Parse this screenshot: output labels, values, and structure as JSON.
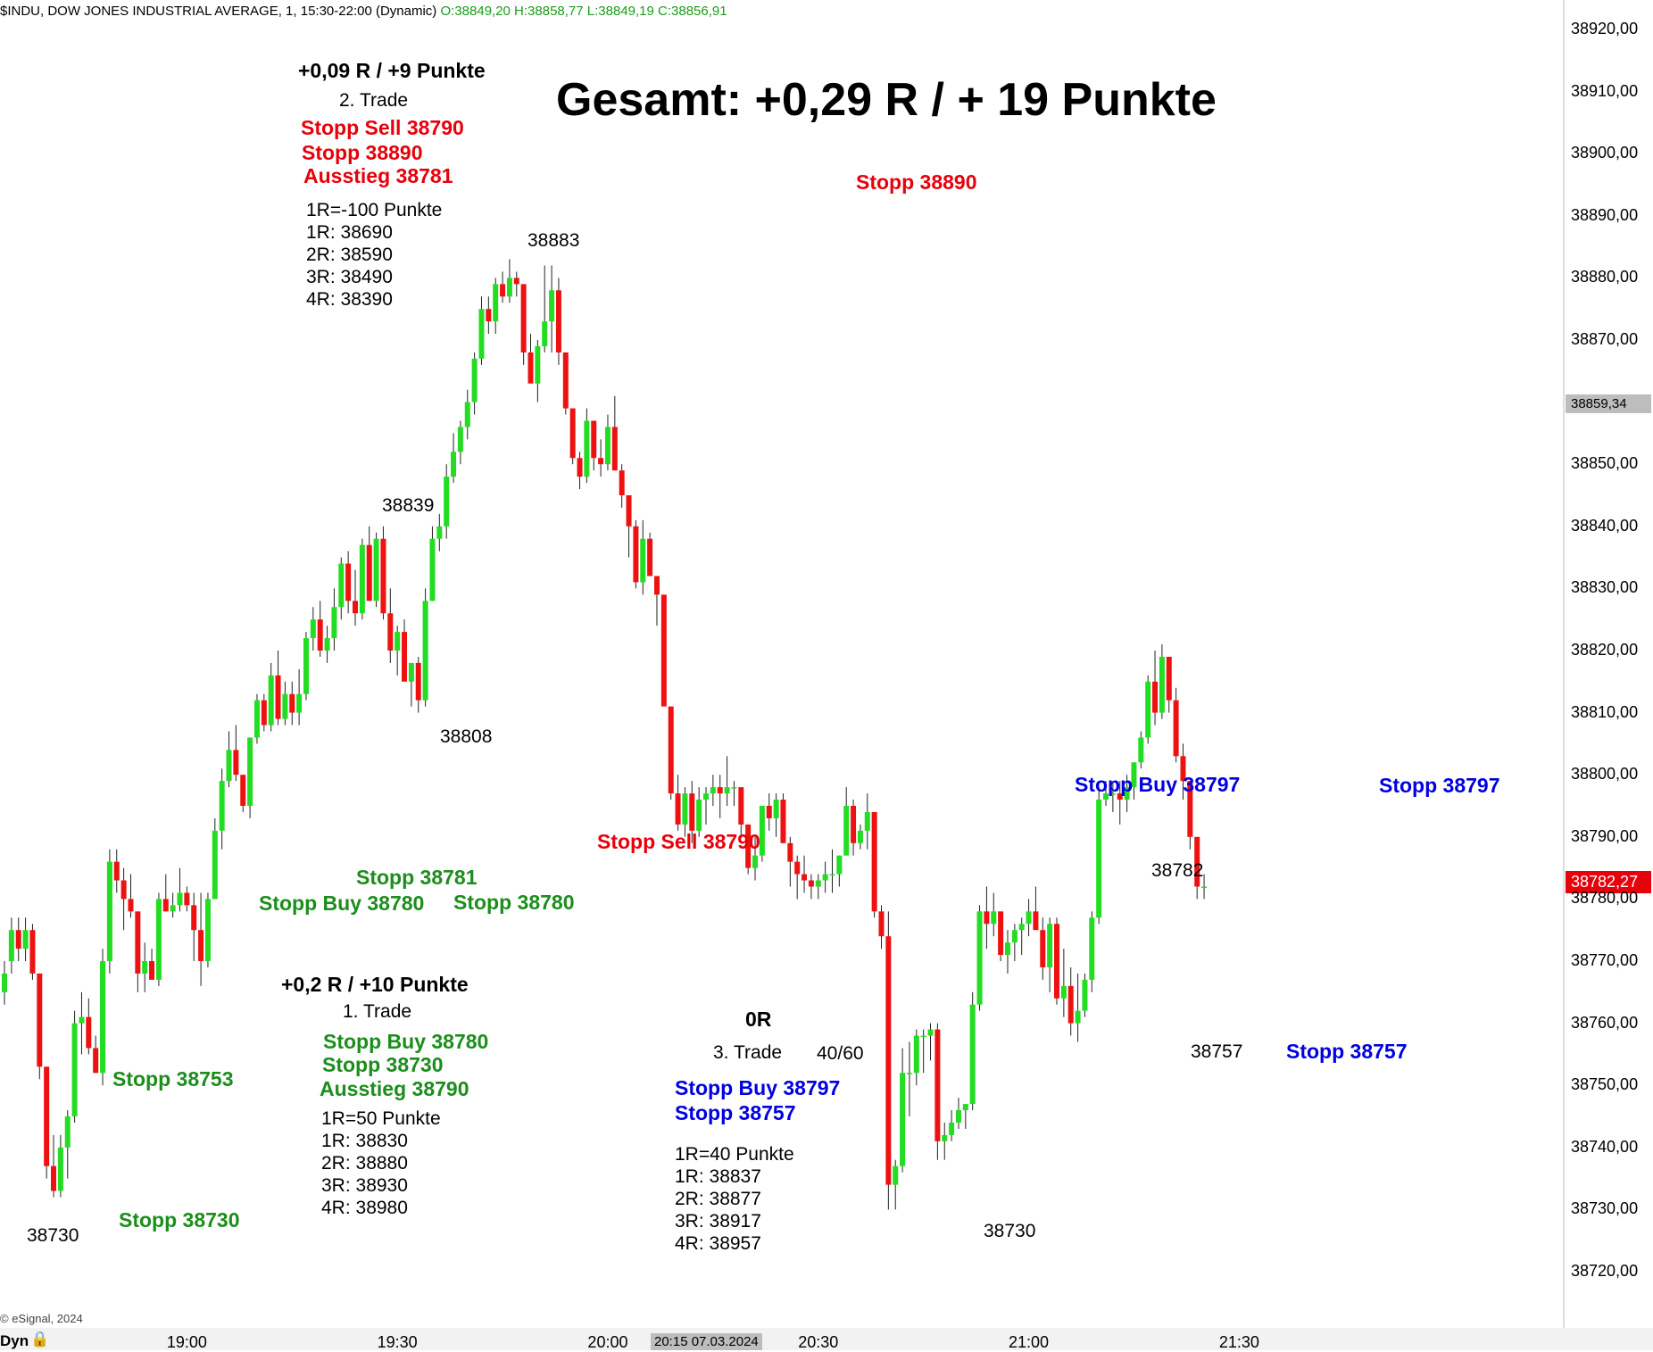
{
  "header": {
    "title": "$INDU, DOW JONES INDUSTRIAL AVERAGE, 1, 15:30-22:00 (Dynamic)",
    "ohlc": "O:38849,20 H:38858,77 L:38849,19 C:38856,91"
  },
  "headline": "Gesamt: +0,29 R /   + 19 Punkte",
  "annotations": {
    "trade2_result": "+0,09 R / +9 Punkte",
    "trade2_label": "2. Trade",
    "trade2_stopp_sell": "Stopp Sell 38790",
    "trade2_stopp": "Stopp 38890",
    "trade2_ausstieg": "Ausstieg 38781",
    "trade2_r_lines": [
      "1R=-100 Punkte",
      "1R: 38690",
      "2R: 38590",
      "3R: 38490",
      "4R: 38390"
    ],
    "stopp_38890_right": "Stopp 38890",
    "high_38883": "38883",
    "high_38839": "38839",
    "low_38808": "38808",
    "stopp_sell_mid": "Stopp Sell 38790",
    "stopp_38781": "Stopp 38781",
    "stopp_buy_38780": "Stopp Buy 38780",
    "stopp_38780": "Stopp 38780",
    "trade1_result": "+0,2 R / +10 Punkte",
    "trade1_label": "1. Trade",
    "trade1_stopp_buy": "Stopp Buy 38780",
    "trade1_stopp": "Stopp 38730",
    "trade1_ausstieg": "Ausstieg 38790",
    "trade1_r_lines": [
      "1R=50 Punkte",
      "1R: 38830",
      "2R: 38880",
      "3R: 38930",
      "4R: 38980"
    ],
    "stopp_38753": "Stopp 38753",
    "stopp_38730_left": "Stopp 38730",
    "low_38730_left": "38730",
    "trade3_result": "0R",
    "trade3_label": "3. Trade",
    "trade3_ratio": "40/60",
    "trade3_stopp_buy": "Stopp Buy 38797",
    "trade3_stopp": "Stopp 38757",
    "trade3_r_lines": [
      "1R=40 Punkte",
      "1R: 38837",
      "2R: 38877",
      "3R: 38917",
      "4R: 38957"
    ],
    "low_38730_right": "38730",
    "stopp_buy_38797": "Stopp Buy 38797",
    "stopp_38797": "Stopp 38797",
    "high_38782": "38782",
    "low_38757": "38757",
    "stopp_38757_right": "Stopp 38757"
  },
  "price_tags": {
    "grey": "38859,34",
    "last": "38782,27"
  },
  "time_tag": "20:15 07.03.2024",
  "copyright": "© eSignal, 2024",
  "dyn_label": "Dyn",
  "colors": {
    "up": "#22dd22",
    "down": "#ee1111",
    "red_text": "#e8000b",
    "green_text": "#1b8e1b",
    "blue_text": "#0000e0",
    "last_tag": "#e8000b",
    "grey_tag": "#bdbdbd"
  },
  "chart_data": {
    "type": "candlestick",
    "y_ticks": [
      "38920,00",
      "38910,00",
      "38900,00",
      "38890,00",
      "38880,00",
      "38870,00",
      "38850,00",
      "38840,00",
      "38830,00",
      "38820,00",
      "38810,00",
      "38800,00",
      "38790,00",
      "38780,00",
      "38770,00",
      "38760,00",
      "38750,00",
      "38740,00",
      "38730,00",
      "38720,00"
    ],
    "ylim": [
      38715,
      38925
    ],
    "x_ticks": [
      {
        "label": "19:00",
        "bar": 26
      },
      {
        "label": "19:30",
        "bar": 56
      },
      {
        "label": "20:00",
        "bar": 86
      },
      {
        "label": "20:30",
        "bar": 116
      },
      {
        "label": "21:00",
        "bar": 146
      },
      {
        "label": "21:30",
        "bar": 176
      }
    ],
    "ohlc": [
      [
        38765,
        38770,
        38763,
        38768
      ],
      [
        38770,
        38777,
        38768,
        38775
      ],
      [
        38775,
        38777,
        38770,
        38772
      ],
      [
        38772,
        38777,
        38770,
        38775
      ],
      [
        38775,
        38776,
        38767,
        38768
      ],
      [
        38768,
        38768,
        38751,
        38753
      ],
      [
        38753,
        38753,
        38735,
        38737
      ],
      [
        38737,
        38742,
        38732,
        38733
      ],
      [
        38733,
        38742,
        38732,
        38740
      ],
      [
        38740,
        38746,
        38735,
        38745
      ],
      [
        38745,
        38762,
        38744,
        38760
      ],
      [
        38760,
        38765,
        38755,
        38761
      ],
      [
        38761,
        38764,
        38755,
        38756
      ],
      [
        38756,
        38758,
        38752,
        38752
      ],
      [
        38752,
        38772,
        38750,
        38770
      ],
      [
        38770,
        38788,
        38768,
        38786
      ],
      [
        38786,
        38788,
        38781,
        38783
      ],
      [
        38783,
        38785,
        38775,
        38780
      ],
      [
        38780,
        38784,
        38777,
        38778
      ],
      [
        38778,
        38778,
        38765,
        38768
      ],
      [
        38768,
        38773,
        38765,
        38770
      ],
      [
        38770,
        38772,
        38767,
        38767
      ],
      [
        38767,
        38781,
        38766,
        38780
      ],
      [
        38780,
        38784,
        38778,
        38778
      ],
      [
        38778,
        38781,
        38777,
        38779
      ],
      [
        38779,
        38785,
        38778,
        38781
      ],
      [
        38781,
        38782,
        38778,
        38779
      ],
      [
        38779,
        38781,
        38770,
        38775
      ],
      [
        38775,
        38781,
        38766,
        38770
      ],
      [
        38770,
        38781,
        38769,
        38780
      ],
      [
        38780,
        38793,
        38780,
        38791
      ],
      [
        38791,
        38801,
        38788,
        38799
      ],
      [
        38799,
        38807,
        38798,
        38804
      ],
      [
        38804,
        38808,
        38799,
        38800
      ],
      [
        38800,
        38800,
        38794,
        38795
      ],
      [
        38795,
        38806,
        38793,
        38806
      ],
      [
        38806,
        38813,
        38805,
        38812
      ],
      [
        38812,
        38813,
        38807,
        38808
      ],
      [
        38808,
        38818,
        38807,
        38816
      ],
      [
        38816,
        38820,
        38808,
        38809
      ],
      [
        38809,
        38815,
        38808,
        38813
      ],
      [
        38813,
        38815,
        38808,
        38810
      ],
      [
        38810,
        38817,
        38808,
        38813
      ],
      [
        38813,
        38823,
        38812,
        38822
      ],
      [
        38822,
        38827,
        38820,
        38825
      ],
      [
        38825,
        38828,
        38819,
        38820
      ],
      [
        38820,
        38824,
        38818,
        38822
      ],
      [
        38822,
        38830,
        38820,
        38827
      ],
      [
        38827,
        38835,
        38825,
        38834
      ],
      [
        38834,
        38836,
        38826,
        38828
      ],
      [
        38828,
        38833,
        38824,
        38826
      ],
      [
        38826,
        38838,
        38825,
        38837
      ],
      [
        38837,
        38840,
        38828,
        38828
      ],
      [
        38828,
        38839,
        38827,
        38838
      ],
      [
        38838,
        38840,
        38825,
        38826
      ],
      [
        38826,
        38830,
        38818,
        38820
      ],
      [
        38820,
        38824,
        38816,
        38823
      ],
      [
        38823,
        38825,
        38816,
        38815
      ],
      [
        38815,
        38817,
        38811,
        38818
      ],
      [
        38818,
        38819,
        38810,
        38812
      ],
      [
        38812,
        38830,
        38811,
        38828
      ],
      [
        38828,
        38840,
        38828,
        38838
      ],
      [
        38838,
        38842,
        38836,
        38840
      ],
      [
        38840,
        38850,
        38838,
        38848
      ],
      [
        38848,
        38855,
        38847,
        38852
      ],
      [
        38852,
        38857,
        38850,
        38856
      ],
      [
        38856,
        38862,
        38854,
        38860
      ],
      [
        38860,
        38868,
        38858,
        38867
      ],
      [
        38867,
        38877,
        38866,
        38875
      ],
      [
        38875,
        38877,
        38871,
        38873
      ],
      [
        38873,
        38880,
        38871,
        38879
      ],
      [
        38879,
        38881,
        38876,
        38877
      ],
      [
        38877,
        38883,
        38876,
        38880
      ],
      [
        38880,
        38881,
        38877,
        38879
      ],
      [
        38879,
        38879,
        38866,
        38868
      ],
      [
        38868,
        38871,
        38864,
        38863
      ],
      [
        38863,
        38870,
        38860,
        38869
      ],
      [
        38869,
        38882,
        38868,
        38873
      ],
      [
        38873,
        38882,
        38868,
        38878
      ],
      [
        38878,
        38880,
        38866,
        38868
      ],
      [
        38868,
        38868,
        38858,
        38859
      ],
      [
        38859,
        38859,
        38850,
        38851
      ],
      [
        38851,
        38852,
        38846,
        38848
      ],
      [
        38848,
        38859,
        38847,
        38857
      ],
      [
        38857,
        38857,
        38849,
        38851
      ],
      [
        38851,
        38854,
        38848,
        38850
      ],
      [
        38850,
        38858,
        38849,
        38856
      ],
      [
        38856,
        38861,
        38849,
        38849
      ],
      [
        38849,
        38850,
        38843,
        38845
      ],
      [
        38845,
        38845,
        38835,
        38840
      ],
      [
        38840,
        38841,
        38830,
        38831
      ],
      [
        38831,
        38841,
        38829,
        38838
      ],
      [
        38838,
        38839,
        38832,
        38832
      ],
      [
        38832,
        38832,
        38824,
        38829
      ],
      [
        38829,
        38829,
        38812,
        38811
      ],
      [
        38811,
        38811,
        38796,
        38797
      ],
      [
        38797,
        38800,
        38791,
        38792
      ],
      [
        38792,
        38798,
        38790,
        38797
      ],
      [
        38797,
        38799,
        38789,
        38791
      ],
      [
        38791,
        38798,
        38790,
        38796
      ],
      [
        38796,
        38798,
        38792,
        38797
      ],
      [
        38797,
        38800,
        38795,
        38798
      ],
      [
        38798,
        38800,
        38793,
        38797
      ],
      [
        38797,
        38803,
        38795,
        38798
      ],
      [
        38798,
        38799,
        38795,
        38798
      ],
      [
        38798,
        38798,
        38790,
        38792
      ],
      [
        38792,
        38792,
        38784,
        38785
      ],
      [
        38785,
        38790,
        38783,
        38787
      ],
      [
        38787,
        38795,
        38786,
        38795
      ],
      [
        38795,
        38797,
        38791,
        38793
      ],
      [
        38793,
        38797,
        38790,
        38796
      ],
      [
        38796,
        38797,
        38789,
        38789
      ],
      [
        38789,
        38790,
        38782,
        38786
      ],
      [
        38786,
        38787,
        38780,
        38784
      ],
      [
        38784,
        38787,
        38781,
        38783
      ],
      [
        38783,
        38784,
        38780,
        38782
      ],
      [
        38782,
        38784,
        38780,
        38783
      ],
      [
        38783,
        38786,
        38781,
        38784
      ],
      [
        38784,
        38788,
        38781,
        38784
      ],
      [
        38784,
        38787,
        38782,
        38787
      ],
      [
        38787,
        38798,
        38787,
        38795
      ],
      [
        38795,
        38796,
        38787,
        38789
      ],
      [
        38789,
        38792,
        38788,
        38791
      ],
      [
        38791,
        38797,
        38788,
        38794
      ],
      [
        38794,
        38794,
        38777,
        38778
      ],
      [
        38778,
        38779,
        38772,
        38774
      ],
      [
        38774,
        38778,
        38730,
        38734
      ],
      [
        38734,
        38738,
        38730,
        38737
      ],
      [
        38737,
        38756,
        38736,
        38752
      ],
      [
        38752,
        38757,
        38745,
        38752
      ],
      [
        38752,
        38759,
        38750,
        38758
      ],
      [
        38758,
        38759,
        38752,
        38758
      ],
      [
        38758,
        38760,
        38754,
        38759
      ],
      [
        38759,
        38760,
        38738,
        38741
      ],
      [
        38741,
        38744,
        38738,
        38742
      ],
      [
        38742,
        38746,
        38741,
        38744
      ],
      [
        38744,
        38748,
        38743,
        38746
      ],
      [
        38746,
        38747,
        38743,
        38747
      ],
      [
        38747,
        38765,
        38746,
        38763
      ],
      [
        38763,
        38779,
        38762,
        38778
      ],
      [
        38778,
        38782,
        38772,
        38776
      ],
      [
        38776,
        38781,
        38774,
        38778
      ],
      [
        38778,
        38778,
        38770,
        38771
      ],
      [
        38771,
        38775,
        38768,
        38773
      ],
      [
        38773,
        38776,
        38770,
        38775
      ],
      [
        38775,
        38777,
        38771,
        38776
      ],
      [
        38776,
        38780,
        38774,
        38778
      ],
      [
        38778,
        38782,
        38776,
        38775
      ],
      [
        38775,
        38777,
        38767,
        38769
      ],
      [
        38769,
        38777,
        38765,
        38776
      ],
      [
        38776,
        38777,
        38763,
        38764
      ],
      [
        38764,
        38772,
        38761,
        38766
      ],
      [
        38766,
        38769,
        38758,
        38760
      ],
      [
        38760,
        38768,
        38757,
        38762
      ],
      [
        38762,
        38768,
        38761,
        38767
      ],
      [
        38767,
        38778,
        38765,
        38777
      ],
      [
        38777,
        38798,
        38776,
        38796
      ],
      [
        38796,
        38799,
        38795,
        38797
      ],
      [
        38797,
        38799,
        38794,
        38797
      ],
      [
        38797,
        38799,
        38792,
        38796
      ],
      [
        38796,
        38800,
        38794,
        38798
      ],
      [
        38798,
        38802,
        38796,
        38802
      ],
      [
        38802,
        38807,
        38801,
        38806
      ],
      [
        38806,
        38816,
        38805,
        38815
      ],
      [
        38815,
        38820,
        38808,
        38810
      ],
      [
        38810,
        38821,
        38809,
        38819
      ],
      [
        38819,
        38819,
        38810,
        38812
      ],
      [
        38812,
        38814,
        38802,
        38803
      ],
      [
        38803,
        38805,
        38796,
        38799
      ],
      [
        38799,
        38799,
        38788,
        38790
      ],
      [
        38790,
        38790,
        38780,
        38782
      ],
      [
        38782,
        38784,
        38780,
        38782
      ]
    ]
  }
}
